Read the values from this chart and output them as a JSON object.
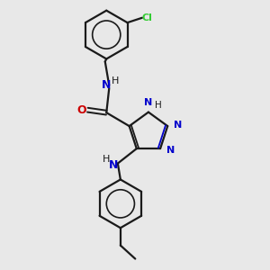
{
  "bg_color": "#e8e8e8",
  "bond_color": "#1a1a1a",
  "N_color": "#0000cc",
  "O_color": "#cc0000",
  "Cl_color": "#33cc33",
  "H_color": "#1a1a1a",
  "line_width": 1.6,
  "figsize": [
    3.0,
    3.0
  ],
  "dpi": 100,
  "xlim": [
    0,
    10
  ],
  "ylim": [
    0,
    10
  ]
}
